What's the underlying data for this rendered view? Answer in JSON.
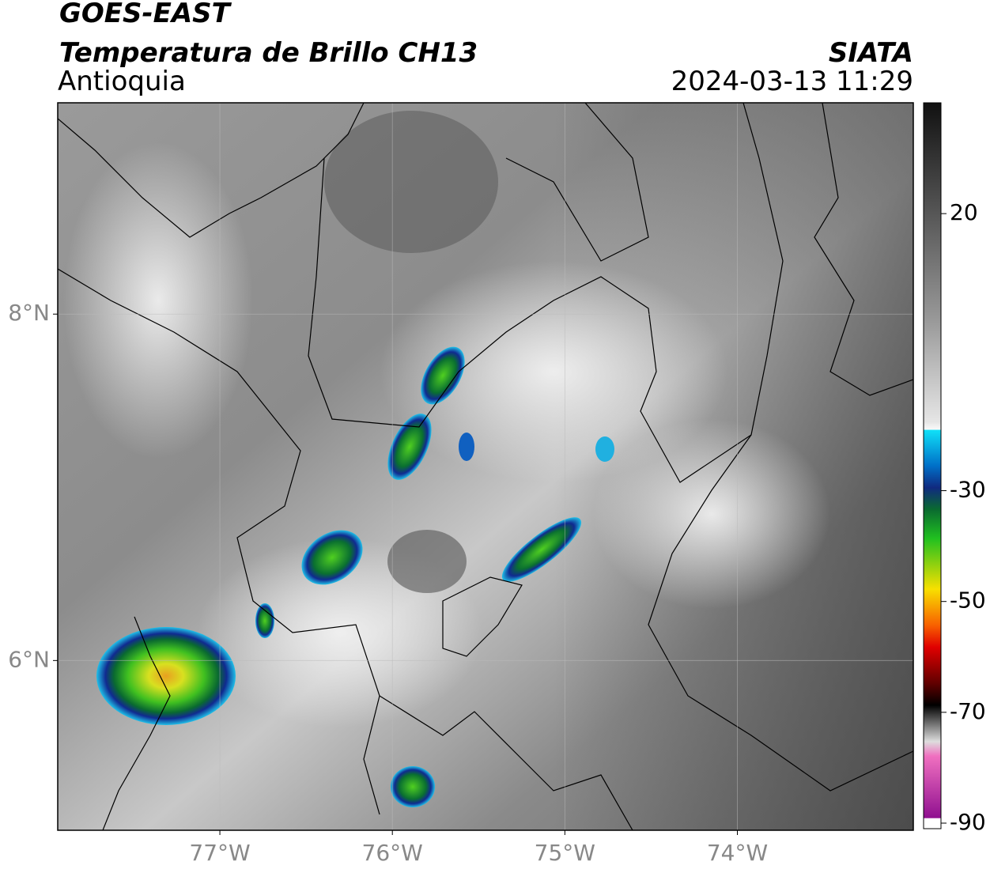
{
  "title": "GOES-EAST",
  "subtitle": "Temperatura de Brillo CH13",
  "region": "Antioquia",
  "source": "SIATA",
  "datetime": "2024-03-13 11:29",
  "map": {
    "xlim": [
      -77.94,
      -72.98
    ],
    "ylim": [
      5.02,
      9.22
    ],
    "xticks": [
      {
        "value": -77,
        "label": "77°W"
      },
      {
        "value": -76,
        "label": "76°W"
      },
      {
        "value": -75,
        "label": "75°W"
      },
      {
        "value": -74,
        "label": "74°W"
      }
    ],
    "yticks": [
      {
        "value": 6,
        "label": "6°N"
      },
      {
        "value": 8,
        "label": "8°N"
      }
    ],
    "grid": true
  },
  "colorbar": {
    "lim": [
      -91,
      40
    ],
    "ticks": [
      20,
      -30,
      -50,
      -70,
      -90
    ]
  }
}
